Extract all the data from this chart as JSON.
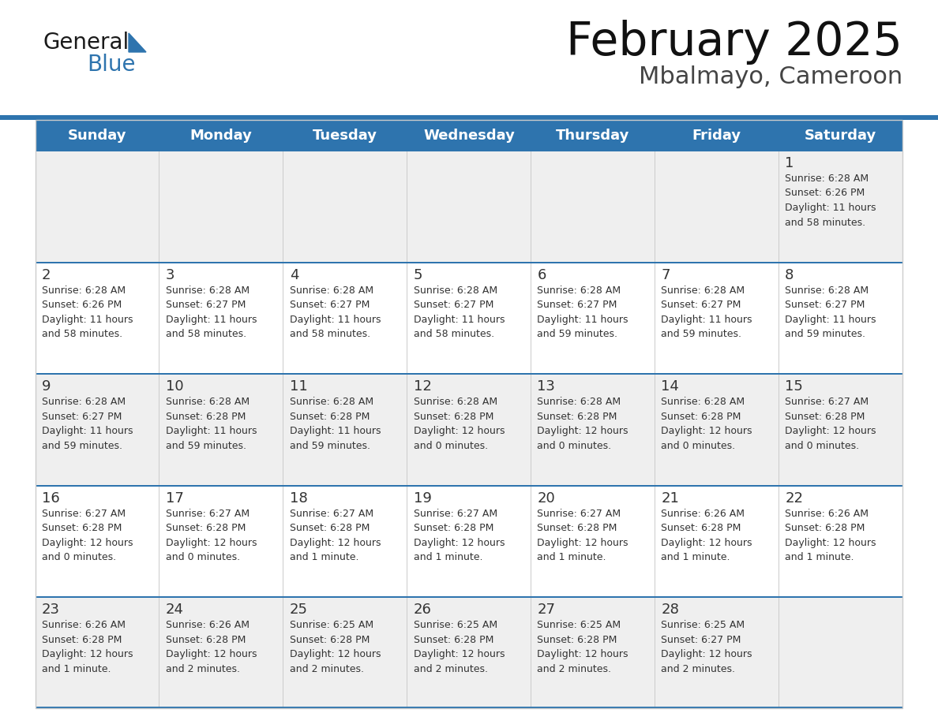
{
  "title": "February 2025",
  "subtitle": "Mbalmayo, Cameroon",
  "header_bg": "#2E74AE",
  "header_text_color": "#FFFFFF",
  "day_names": [
    "Sunday",
    "Monday",
    "Tuesday",
    "Wednesday",
    "Thursday",
    "Friday",
    "Saturday"
  ],
  "row_bg_odd": "#EFEFEF",
  "row_bg_even": "#FFFFFF",
  "separator_color": "#2E74AE",
  "text_color": "#333333",
  "day_num_color": "#333333",
  "grid_line_color": "#CCCCCC",
  "calendar": [
    [
      {
        "day": null,
        "info": null
      },
      {
        "day": null,
        "info": null
      },
      {
        "day": null,
        "info": null
      },
      {
        "day": null,
        "info": null
      },
      {
        "day": null,
        "info": null
      },
      {
        "day": null,
        "info": null
      },
      {
        "day": 1,
        "info": "Sunrise: 6:28 AM\nSunset: 6:26 PM\nDaylight: 11 hours\nand 58 minutes."
      }
    ],
    [
      {
        "day": 2,
        "info": "Sunrise: 6:28 AM\nSunset: 6:26 PM\nDaylight: 11 hours\nand 58 minutes."
      },
      {
        "day": 3,
        "info": "Sunrise: 6:28 AM\nSunset: 6:27 PM\nDaylight: 11 hours\nand 58 minutes."
      },
      {
        "day": 4,
        "info": "Sunrise: 6:28 AM\nSunset: 6:27 PM\nDaylight: 11 hours\nand 58 minutes."
      },
      {
        "day": 5,
        "info": "Sunrise: 6:28 AM\nSunset: 6:27 PM\nDaylight: 11 hours\nand 58 minutes."
      },
      {
        "day": 6,
        "info": "Sunrise: 6:28 AM\nSunset: 6:27 PM\nDaylight: 11 hours\nand 59 minutes."
      },
      {
        "day": 7,
        "info": "Sunrise: 6:28 AM\nSunset: 6:27 PM\nDaylight: 11 hours\nand 59 minutes."
      },
      {
        "day": 8,
        "info": "Sunrise: 6:28 AM\nSunset: 6:27 PM\nDaylight: 11 hours\nand 59 minutes."
      }
    ],
    [
      {
        "day": 9,
        "info": "Sunrise: 6:28 AM\nSunset: 6:27 PM\nDaylight: 11 hours\nand 59 minutes."
      },
      {
        "day": 10,
        "info": "Sunrise: 6:28 AM\nSunset: 6:28 PM\nDaylight: 11 hours\nand 59 minutes."
      },
      {
        "day": 11,
        "info": "Sunrise: 6:28 AM\nSunset: 6:28 PM\nDaylight: 11 hours\nand 59 minutes."
      },
      {
        "day": 12,
        "info": "Sunrise: 6:28 AM\nSunset: 6:28 PM\nDaylight: 12 hours\nand 0 minutes."
      },
      {
        "day": 13,
        "info": "Sunrise: 6:28 AM\nSunset: 6:28 PM\nDaylight: 12 hours\nand 0 minutes."
      },
      {
        "day": 14,
        "info": "Sunrise: 6:28 AM\nSunset: 6:28 PM\nDaylight: 12 hours\nand 0 minutes."
      },
      {
        "day": 15,
        "info": "Sunrise: 6:27 AM\nSunset: 6:28 PM\nDaylight: 12 hours\nand 0 minutes."
      }
    ],
    [
      {
        "day": 16,
        "info": "Sunrise: 6:27 AM\nSunset: 6:28 PM\nDaylight: 12 hours\nand 0 minutes."
      },
      {
        "day": 17,
        "info": "Sunrise: 6:27 AM\nSunset: 6:28 PM\nDaylight: 12 hours\nand 0 minutes."
      },
      {
        "day": 18,
        "info": "Sunrise: 6:27 AM\nSunset: 6:28 PM\nDaylight: 12 hours\nand 1 minute."
      },
      {
        "day": 19,
        "info": "Sunrise: 6:27 AM\nSunset: 6:28 PM\nDaylight: 12 hours\nand 1 minute."
      },
      {
        "day": 20,
        "info": "Sunrise: 6:27 AM\nSunset: 6:28 PM\nDaylight: 12 hours\nand 1 minute."
      },
      {
        "day": 21,
        "info": "Sunrise: 6:26 AM\nSunset: 6:28 PM\nDaylight: 12 hours\nand 1 minute."
      },
      {
        "day": 22,
        "info": "Sunrise: 6:26 AM\nSunset: 6:28 PM\nDaylight: 12 hours\nand 1 minute."
      }
    ],
    [
      {
        "day": 23,
        "info": "Sunrise: 6:26 AM\nSunset: 6:28 PM\nDaylight: 12 hours\nand 1 minute."
      },
      {
        "day": 24,
        "info": "Sunrise: 6:26 AM\nSunset: 6:28 PM\nDaylight: 12 hours\nand 2 minutes."
      },
      {
        "day": 25,
        "info": "Sunrise: 6:25 AM\nSunset: 6:28 PM\nDaylight: 12 hours\nand 2 minutes."
      },
      {
        "day": 26,
        "info": "Sunrise: 6:25 AM\nSunset: 6:28 PM\nDaylight: 12 hours\nand 2 minutes."
      },
      {
        "day": 27,
        "info": "Sunrise: 6:25 AM\nSunset: 6:28 PM\nDaylight: 12 hours\nand 2 minutes."
      },
      {
        "day": 28,
        "info": "Sunrise: 6:25 AM\nSunset: 6:27 PM\nDaylight: 12 hours\nand 2 minutes."
      },
      {
        "day": null,
        "info": null
      }
    ]
  ],
  "logo_text1": "General",
  "logo_text2": "Blue",
  "logo_color1": "#1a1a1a",
  "logo_color2": "#2E74AE",
  "logo_triangle_color": "#2E74AE",
  "fig_width": 11.88,
  "fig_height": 9.18,
  "dpi": 100
}
